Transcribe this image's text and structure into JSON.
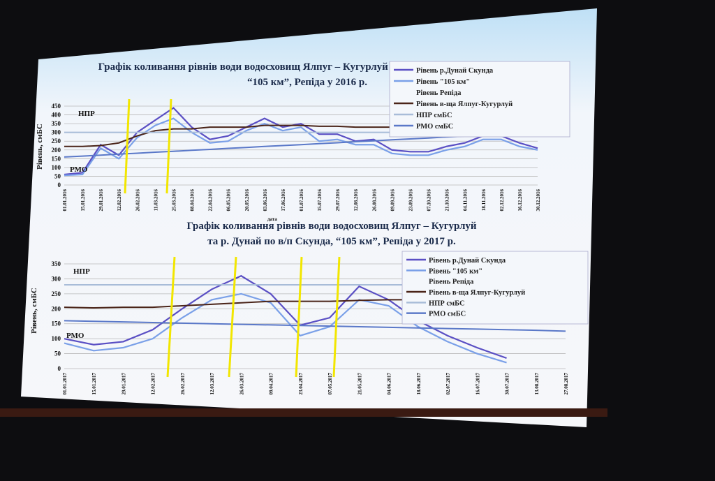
{
  "chart_data": [
    {
      "type": "line",
      "title": [
        "Графік коливання рівнів води водосховищ Ялпуг – Кугурлуй та р. Дунай по в/п Скунда,",
        "“105 км”, Репіда у 2016 р."
      ],
      "x_label": "дата",
      "y_label": "Рівень, смБС",
      "annotations": [
        "НПР",
        "РМО"
      ],
      "categories": [
        "01.01.2016",
        "15.01.2016",
        "29.01.2016",
        "12.02.2016",
        "26.02.2016",
        "11.03.2016",
        "25.03.2016",
        "08.04.2016",
        "22.04.2016",
        "06.05.2016",
        "20.05.2016",
        "03.06.2016",
        "17.06.2016",
        "01.07.2016",
        "15.07.2016",
        "29.07.2016",
        "12.08.2016",
        "26.08.2016",
        "09.09.2016",
        "23.09.2016",
        "07.10.2016",
        "21.10.2016",
        "04.11.2016",
        "18.11.2016",
        "02.12.2016",
        "16.12.2016",
        "30.12.2016"
      ],
      "ylim": [
        0,
        450
      ],
      "yticks": [
        0,
        50,
        100,
        150,
        200,
        250,
        300,
        350,
        400,
        450
      ],
      "grid": true,
      "series": [
        {
          "name": "Рівень р.Дунай Скунда",
          "color": "#5a4fc4",
          "values": [
            60,
            70,
            230,
            170,
            300,
            370,
            440,
            330,
            260,
            280,
            330,
            380,
            330,
            350,
            290,
            290,
            250,
            260,
            200,
            190,
            190,
            220,
            240,
            280,
            280,
            240,
            210
          ]
        },
        {
          "name": "Рівень      \"105 км\"",
          "color": "#7aa0e8",
          "values": [
            55,
            60,
            210,
            150,
            270,
            340,
            380,
            300,
            240,
            250,
            310,
            350,
            310,
            330,
            250,
            260,
            230,
            230,
            180,
            170,
            170,
            200,
            220,
            260,
            260,
            220,
            200
          ]
        },
        {
          "name": "Рівень Репіда",
          "values": [
            null,
            null,
            null,
            null,
            null,
            null,
            null,
            null,
            null,
            null,
            null,
            null,
            null,
            null,
            null,
            null,
            null,
            null,
            null,
            null,
            null,
            null,
            null,
            null,
            null,
            null,
            null
          ]
        },
        {
          "name": "Рівень в-ща Ялпуг-Кугурлуй",
          "color": "#4a2418",
          "values": [
            220,
            220,
            225,
            240,
            280,
            310,
            320,
            320,
            330,
            330,
            330,
            340,
            340,
            340,
            335,
            335,
            330,
            330,
            330,
            330,
            330,
            330,
            330,
            330,
            330,
            330,
            330
          ]
        },
        {
          "name": "НПР смБС",
          "color": "#a8bcd8",
          "values": [
            300,
            300,
            300,
            300,
            300,
            300,
            300,
            300,
            300,
            300,
            300,
            300,
            300,
            300,
            300,
            300,
            300,
            300,
            300,
            300,
            300,
            300,
            300,
            300,
            300,
            300,
            300
          ]
        },
        {
          "name": "РМО смБС",
          "color": "#5a78c8",
          "values": [
            160,
            165,
            170,
            176,
            181,
            187,
            192,
            198,
            203,
            209,
            214,
            220,
            225,
            230,
            236,
            241,
            247,
            252,
            258,
            263,
            268,
            274,
            279,
            285,
            290,
            296,
            300
          ]
        }
      ]
    },
    {
      "type": "line",
      "title": [
        "Графік коливання рівнів води водосховищ Ялпуг – Кугурлуй",
        "та р. Дунай по в/п Скунда, “105 км”, Репіда у 2017 р."
      ],
      "y_label": "Рівень, смБС",
      "annotations": [
        "НПР",
        "РМО"
      ],
      "categories": [
        "01.01.2017",
        "15.01.2017",
        "29.01.2017",
        "12.02.2017",
        "26.02.2017",
        "12.03.2017",
        "26.03.2017",
        "09.04.2017",
        "23.04.2017",
        "07.05.2017",
        "21.05.2017",
        "04.06.2017",
        "18.06.2017",
        "02.07.2017",
        "16.07.2017",
        "30.07.2017",
        "13.08.2017",
        "27.08.2017"
      ],
      "ylim": [
        0,
        350
      ],
      "yticks": [
        0,
        50,
        100,
        150,
        200,
        250,
        300,
        350
      ],
      "grid": true,
      "series": [
        {
          "name": "Рівень р.Дунай Скунда",
          "color": "#5a4fc4",
          "values": [
            100,
            80,
            90,
            130,
            200,
            265,
            310,
            250,
            145,
            170,
            275,
            230,
            160,
            110,
            70,
            35,
            null,
            null
          ]
        },
        {
          "name": "Рівень      \"105 км\"",
          "color": "#7aa0e8",
          "values": [
            85,
            60,
            70,
            100,
            170,
            230,
            250,
            220,
            110,
            140,
            230,
            210,
            140,
            90,
            50,
            20,
            null,
            null
          ]
        },
        {
          "name": "Рівень Репіда",
          "values": [
            null,
            null,
            null,
            null,
            null,
            null,
            null,
            null,
            null,
            null,
            null,
            null,
            null,
            null,
            null,
            null,
            null,
            null
          ]
        },
        {
          "name": "Рівень в-ща Ялпуг-Кугурлуй",
          "color": "#4a2418",
          "values": [
            205,
            203,
            205,
            205,
            210,
            215,
            220,
            225,
            225,
            225,
            228,
            230,
            230,
            232,
            232,
            232,
            null,
            null
          ]
        },
        {
          "name": "НПР смБС",
          "color": "#a8bcd8",
          "values": [
            280,
            280,
            280,
            280,
            280,
            280,
            280,
            280,
            280,
            280,
            280,
            280,
            280,
            280,
            280,
            280,
            280,
            280
          ]
        },
        {
          "name": "РМО смБС",
          "color": "#5a78c8",
          "values": [
            160,
            158,
            156,
            154,
            152,
            150,
            148,
            146,
            144,
            142,
            140,
            138,
            136,
            134,
            132,
            130,
            128,
            125
          ]
        }
      ]
    }
  ]
}
